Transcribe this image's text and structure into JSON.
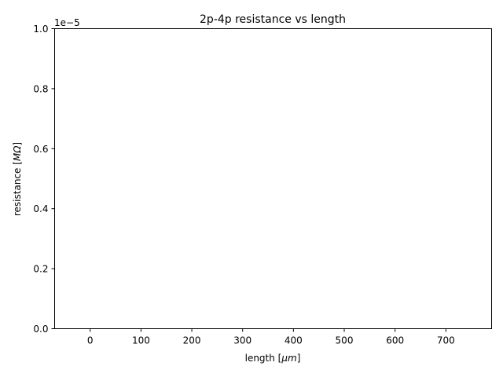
{
  "chart_data": {
    "type": "scatter",
    "title": "2p-4p resistance vs length",
    "xlabel_text": "length [",
    "xlabel_unit": "μm",
    "xlabel_close": "]",
    "ylabel_text": "resistance [",
    "ylabel_unit": "MΩ",
    "ylabel_close": "]",
    "offset_text": "1e−5",
    "xlim": [
      -70,
      790
    ],
    "ylim": [
      0,
      1
    ],
    "x_ticks": [
      0,
      100,
      200,
      300,
      400,
      500,
      600,
      700
    ],
    "x_tick_labels": [
      "0",
      "100",
      "200",
      "300",
      "400",
      "500",
      "600",
      "700"
    ],
    "y_ticks": [
      0,
      0.2,
      0.4,
      0.6,
      0.8,
      1.0
    ],
    "y_tick_labels": [
      "0.0",
      "0.2",
      "0.4",
      "0.6",
      "0.8",
      "1.0"
    ],
    "series": [
      {
        "x": [],
        "y": []
      }
    ],
    "grid": false,
    "colors": {
      "axis": "#000000",
      "background": "#ffffff"
    }
  }
}
